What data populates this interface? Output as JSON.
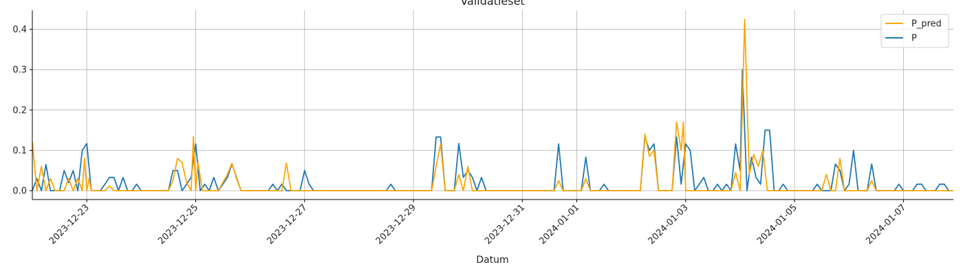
{
  "chart_data": {
    "type": "line",
    "title": "Validatieset",
    "xlabel": "Datum",
    "ylabel": "",
    "ylim": [
      -0.022,
      0.447
    ],
    "grid": true,
    "legend_position": "top-right",
    "x_ticks": [
      "2023-12-23",
      "2023-12-25",
      "2023-12-27",
      "2023-12-29",
      "2023-12-31",
      "2024-01-01",
      "2024-01-03",
      "2024-01-05",
      "2024-01-07"
    ],
    "y_ticks": [
      "0.0",
      "0.1",
      "0.2",
      "0.3",
      "0.4"
    ],
    "y_tick_values": [
      0.0,
      0.1,
      0.2,
      0.3,
      0.4
    ],
    "x_domain": [
      "2023-12-22 00:00",
      "2024-01-07 22:00"
    ],
    "series": [
      {
        "name": "P_pred",
        "color": "#ffa500",
        "points": [
          [
            "2023-12-22 00:00",
            0.12
          ],
          [
            "2023-12-22 02:00",
            0.0
          ],
          [
            "2023-12-22 04:00",
            0.06
          ],
          [
            "2023-12-22 06:00",
            0.0
          ],
          [
            "2023-12-22 08:00",
            0.03
          ],
          [
            "2023-12-22 10:00",
            0.0
          ],
          [
            "2023-12-22 14:00",
            0.0
          ],
          [
            "2023-12-22 16:00",
            0.03
          ],
          [
            "2023-12-22 18:00",
            0.0
          ],
          [
            "2023-12-22 20:00",
            0.03
          ],
          [
            "2023-12-22 22:00",
            0.0
          ],
          [
            "2023-12-23 00:00",
            0.0
          ],
          [
            "2023-12-22 23:00",
            0.08
          ],
          [
            "2023-12-23 01:00",
            0.03
          ],
          [
            "2023-12-23 02:00",
            0.0
          ],
          [
            "2023-12-23 06:00",
            0.0
          ],
          [
            "2023-12-23 08:00",
            0.0
          ],
          [
            "2023-12-23 10:00",
            0.012
          ],
          [
            "2023-12-23 12:00",
            0.0
          ],
          [
            "2023-12-24 12:00",
            0.0
          ],
          [
            "2023-12-24 14:00",
            0.025
          ],
          [
            "2023-12-24 16:00",
            0.08
          ],
          [
            "2023-12-24 18:00",
            0.07
          ],
          [
            "2023-12-24 20:00",
            0.02
          ],
          [
            "2023-12-24 22:00",
            0.0
          ],
          [
            "2023-12-25 00:00",
            0.0
          ],
          [
            "2023-12-24 23:00",
            0.134
          ],
          [
            "2023-12-25 01:00",
            0.07
          ],
          [
            "2023-12-25 03:00",
            0.0
          ],
          [
            "2023-12-25 06:00",
            0.0
          ],
          [
            "2023-12-25 10:00",
            0.0
          ],
          [
            "2023-12-25 14:00",
            0.04
          ],
          [
            "2023-12-25 16:00",
            0.068
          ],
          [
            "2023-12-25 18:00",
            0.03
          ],
          [
            "2023-12-25 20:00",
            0.0
          ],
          [
            "2023-12-26 10:00",
            0.0
          ],
          [
            "2023-12-26 14:00",
            0.0
          ],
          [
            "2023-12-26 16:00",
            0.068
          ],
          [
            "2023-12-26 18:00",
            0.0
          ],
          [
            "2023-12-29 08:00",
            0.0
          ],
          [
            "2023-12-29 10:00",
            0.06
          ],
          [
            "2023-12-29 12:00",
            0.115
          ],
          [
            "2023-12-29 14:00",
            0.0
          ],
          [
            "2023-12-29 18:00",
            0.0
          ],
          [
            "2023-12-29 20:00",
            0.04
          ],
          [
            "2023-12-29 22:00",
            0.0
          ],
          [
            "2023-12-30 00:00",
            0.06
          ],
          [
            "2023-12-30 02:00",
            0.0
          ],
          [
            "2023-12-31 14:00",
            0.0
          ],
          [
            "2023-12-31 16:00",
            0.025
          ],
          [
            "2023-12-31 18:00",
            0.0
          ],
          [
            "2024-01-01 02:00",
            0.0
          ],
          [
            "2024-01-01 04:00",
            0.03
          ],
          [
            "2024-01-01 06:00",
            0.0
          ],
          [
            "2024-01-02 00:00",
            0.0
          ],
          [
            "2024-01-02 04:00",
            0.0
          ],
          [
            "2024-01-02 06:00",
            0.14
          ],
          [
            "2024-01-02 08:00",
            0.085
          ],
          [
            "2024-01-02 10:00",
            0.1
          ],
          [
            "2024-01-02 12:00",
            0.0
          ],
          [
            "2024-01-02 18:00",
            0.0
          ],
          [
            "2024-01-02 20:00",
            0.17
          ],
          [
            "2024-01-02 22:00",
            0.1
          ],
          [
            "2024-01-03 00:00",
            0.0
          ],
          [
            "2024-01-02 23:00",
            0.17
          ],
          [
            "2024-01-03 01:00",
            0.0
          ],
          [
            "2024-01-03 02:00",
            0.0
          ],
          [
            "2024-01-03 20:00",
            0.0
          ],
          [
            "2024-01-03 22:00",
            0.045
          ],
          [
            "2024-01-04 00:00",
            0.0
          ],
          [
            "2024-01-04 02:00",
            0.425
          ],
          [
            "2024-01-04 04:00",
            0.04
          ],
          [
            "2024-01-04 06:00",
            0.09
          ],
          [
            "2024-01-04 08:00",
            0.06
          ],
          [
            "2024-01-04 10:00",
            0.1
          ],
          [
            "2024-01-04 12:00",
            0.0
          ],
          [
            "2024-01-05 12:00",
            0.0
          ],
          [
            "2024-01-05 14:00",
            0.04
          ],
          [
            "2024-01-05 16:00",
            0.0
          ],
          [
            "2024-01-05 18:00",
            0.0
          ],
          [
            "2024-01-05 20:00",
            0.08
          ],
          [
            "2024-01-05 22:00",
            0.0
          ],
          [
            "2024-01-06 08:00",
            0.0
          ],
          [
            "2024-01-06 10:00",
            0.025
          ],
          [
            "2024-01-06 12:00",
            0.0
          ],
          [
            "2024-01-07 22:00",
            0.0
          ]
        ]
      },
      {
        "name": "P",
        "color": "#1f77b4",
        "points": [
          [
            "2023-12-22 00:00",
            0.0
          ],
          [
            "2023-12-22 02:00",
            0.03
          ],
          [
            "2023-12-22 04:00",
            0.0
          ],
          [
            "2023-12-22 06:00",
            0.065
          ],
          [
            "2023-12-22 08:00",
            0.0
          ],
          [
            "2023-12-22 12:00",
            0.0
          ],
          [
            "2023-12-22 14:00",
            0.05
          ],
          [
            "2023-12-22 16:00",
            0.02
          ],
          [
            "2023-12-22 18:00",
            0.05
          ],
          [
            "2023-12-22 20:00",
            0.0
          ],
          [
            "2023-12-22 22:00",
            0.1
          ],
          [
            "2023-12-23 00:00",
            0.117
          ],
          [
            "2023-12-23 02:00",
            0.0
          ],
          [
            "2023-12-23 06:00",
            0.0
          ],
          [
            "2023-12-23 08:00",
            0.016
          ],
          [
            "2023-12-23 10:00",
            0.033
          ],
          [
            "2023-12-23 12:00",
            0.033
          ],
          [
            "2023-12-23 14:00",
            0.0
          ],
          [
            "2023-12-23 16:00",
            0.033
          ],
          [
            "2023-12-23 18:00",
            0.0
          ],
          [
            "2023-12-23 20:00",
            0.0
          ],
          [
            "2023-12-23 22:00",
            0.016
          ],
          [
            "2023-12-24 00:00",
            0.0
          ],
          [
            "2023-12-24 12:00",
            0.0
          ],
          [
            "2023-12-24 14:00",
            0.05
          ],
          [
            "2023-12-24 16:00",
            0.05
          ],
          [
            "2023-12-24 18:00",
            0.0
          ],
          [
            "2023-12-24 20:00",
            0.016
          ],
          [
            "2023-12-24 22:00",
            0.033
          ],
          [
            "2023-12-25 00:00",
            0.116
          ],
          [
            "2023-12-25 02:00",
            0.0
          ],
          [
            "2023-12-25 04:00",
            0.016
          ],
          [
            "2023-12-25 06:00",
            0.0
          ],
          [
            "2023-12-25 08:00",
            0.033
          ],
          [
            "2023-12-25 10:00",
            0.0
          ],
          [
            "2023-12-25 12:00",
            0.016
          ],
          [
            "2023-12-25 14:00",
            0.033
          ],
          [
            "2023-12-25 16:00",
            0.066
          ],
          [
            "2023-12-25 18:00",
            0.033
          ],
          [
            "2023-12-25 20:00",
            0.0
          ],
          [
            "2023-12-26 08:00",
            0.0
          ],
          [
            "2023-12-26 10:00",
            0.016
          ],
          [
            "2023-12-26 12:00",
            0.0
          ],
          [
            "2023-12-26 14:00",
            0.016
          ],
          [
            "2023-12-26 16:00",
            0.0
          ],
          [
            "2023-12-26 22:00",
            0.0
          ],
          [
            "2023-12-27 00:00",
            0.05
          ],
          [
            "2023-12-27 02:00",
            0.016
          ],
          [
            "2023-12-27 04:00",
            0.0
          ],
          [
            "2023-12-28 12:00",
            0.0
          ],
          [
            "2023-12-28 14:00",
            0.016
          ],
          [
            "2023-12-28 16:00",
            0.0
          ],
          [
            "2023-12-29 08:00",
            0.0
          ],
          [
            "2023-12-29 10:00",
            0.133
          ],
          [
            "2023-12-29 12:00",
            0.133
          ],
          [
            "2023-12-29 14:00",
            0.0
          ],
          [
            "2023-12-29 18:00",
            0.0
          ],
          [
            "2023-12-29 20:00",
            0.117
          ],
          [
            "2023-12-29 22:00",
            0.033
          ],
          [
            "2023-12-30 00:00",
            0.05
          ],
          [
            "2023-12-30 02:00",
            0.033
          ],
          [
            "2023-12-30 04:00",
            0.0
          ],
          [
            "2023-12-30 06:00",
            0.033
          ],
          [
            "2023-12-30 08:00",
            0.0
          ],
          [
            "2023-12-31 14:00",
            0.0
          ],
          [
            "2023-12-31 16:00",
            0.116
          ],
          [
            "2023-12-31 18:00",
            0.0
          ],
          [
            "2024-01-01 02:00",
            0.0
          ],
          [
            "2024-01-01 04:00",
            0.083
          ],
          [
            "2024-01-01 06:00",
            0.0
          ],
          [
            "2024-01-01 10:00",
            0.0
          ],
          [
            "2024-01-01 12:00",
            0.016
          ],
          [
            "2024-01-01 14:00",
            0.0
          ],
          [
            "2024-01-02 04:00",
            0.0
          ],
          [
            "2024-01-02 06:00",
            0.133
          ],
          [
            "2024-01-02 08:00",
            0.1
          ],
          [
            "2024-01-02 10:00",
            0.116
          ],
          [
            "2024-01-02 12:00",
            0.0
          ],
          [
            "2024-01-02 18:00",
            0.0
          ],
          [
            "2024-01-02 20:00",
            0.133
          ],
          [
            "2024-01-02 22:00",
            0.016
          ],
          [
            "2024-01-03 00:00",
            0.116
          ],
          [
            "2024-01-03 02:00",
            0.1
          ],
          [
            "2024-01-03 04:00",
            0.0
          ],
          [
            "2024-01-03 06:00",
            0.016
          ],
          [
            "2024-01-03 08:00",
            0.033
          ],
          [
            "2024-01-03 10:00",
            0.0
          ],
          [
            "2024-01-03 12:00",
            0.0
          ],
          [
            "2024-01-03 14:00",
            0.016
          ],
          [
            "2024-01-03 16:00",
            0.0
          ],
          [
            "2024-01-03 18:00",
            0.016
          ],
          [
            "2024-01-03 20:00",
            0.0
          ],
          [
            "2024-01-03 22:00",
            0.116
          ],
          [
            "2024-01-04 00:00",
            0.05
          ],
          [
            "2024-01-04 01:00",
            0.3
          ],
          [
            "2024-01-04 03:00",
            0.0
          ],
          [
            "2024-01-04 05:00",
            0.083
          ],
          [
            "2024-01-04 07:00",
            0.033
          ],
          [
            "2024-01-04 09:00",
            0.016
          ],
          [
            "2024-01-04 11:00",
            0.15
          ],
          [
            "2024-01-04 13:00",
            0.15
          ],
          [
            "2024-01-04 15:00",
            0.0
          ],
          [
            "2024-01-04 17:00",
            0.0
          ],
          [
            "2024-01-04 19:00",
            0.016
          ],
          [
            "2024-01-04 21:00",
            0.0
          ],
          [
            "2024-01-05 08:00",
            0.0
          ],
          [
            "2024-01-05 10:00",
            0.016
          ],
          [
            "2024-01-05 12:00",
            0.0
          ],
          [
            "2024-01-05 16:00",
            0.0
          ],
          [
            "2024-01-05 18:00",
            0.066
          ],
          [
            "2024-01-05 20:00",
            0.05
          ],
          [
            "2024-01-05 22:00",
            0.0
          ],
          [
            "2024-01-06 00:00",
            0.016
          ],
          [
            "2024-01-06 02:00",
            0.1
          ],
          [
            "2024-01-06 04:00",
            0.0
          ],
          [
            "2024-01-06 08:00",
            0.0
          ],
          [
            "2024-01-06 10:00",
            0.066
          ],
          [
            "2024-01-06 12:00",
            0.0
          ],
          [
            "2024-01-06 20:00",
            0.0
          ],
          [
            "2024-01-06 22:00",
            0.016
          ],
          [
            "2024-01-07 00:00",
            0.0
          ],
          [
            "2024-01-07 04:00",
            0.0
          ],
          [
            "2024-01-07 06:00",
            0.016
          ],
          [
            "2024-01-07 08:00",
            0.016
          ],
          [
            "2024-01-07 10:00",
            0.0
          ],
          [
            "2024-01-07 14:00",
            0.0
          ],
          [
            "2024-01-07 16:00",
            0.016
          ],
          [
            "2024-01-07 18:00",
            0.016
          ],
          [
            "2024-01-07 20:00",
            0.0
          ],
          [
            "2024-01-07 22:00",
            0.0
          ]
        ]
      }
    ]
  }
}
